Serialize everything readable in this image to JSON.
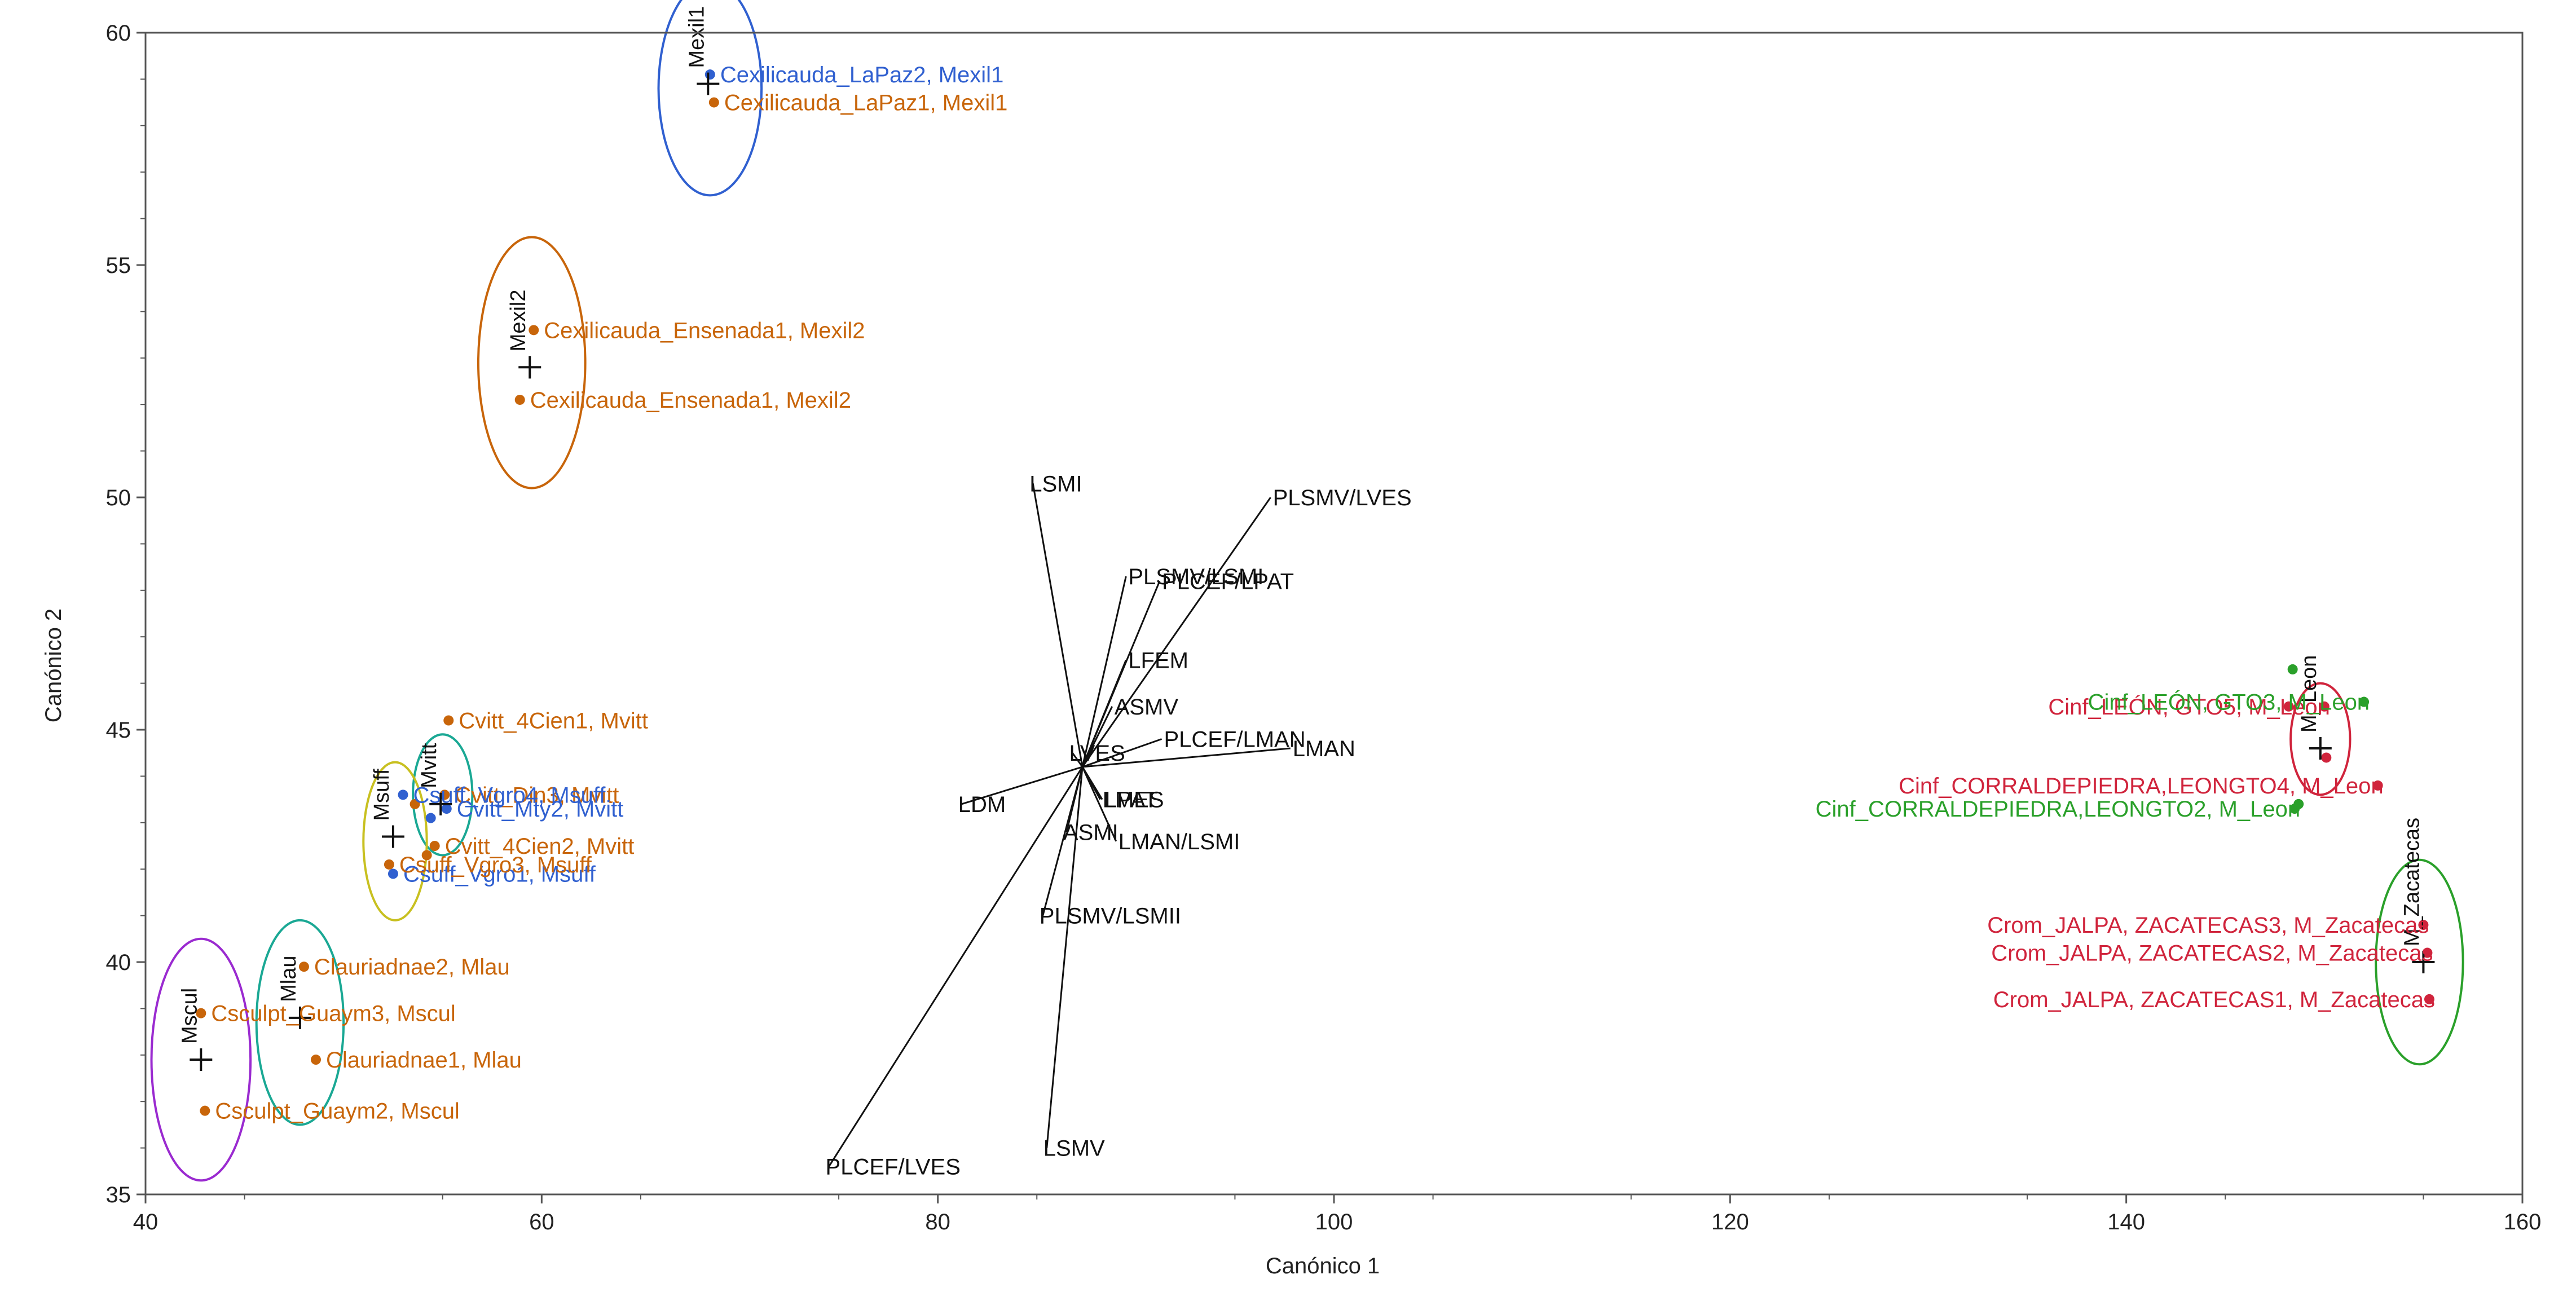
{
  "chart_data": {
    "type": "scatter",
    "title": "",
    "xlabel": "Canónico 1",
    "ylabel": "Canónico 2",
    "xlim": [
      40,
      160
    ],
    "ylim": [
      35,
      60
    ],
    "xticks": [
      40,
      60,
      80,
      100,
      120,
      140,
      160
    ],
    "yticks": [
      35,
      40,
      45,
      50,
      55,
      60
    ],
    "colors": {
      "blue": "#3060d0",
      "orange": "#c8650a",
      "green": "#2aa02a",
      "red": "#d0243c",
      "teal": "#1aa894",
      "yellow": "#c8c020",
      "purple": "#9a2ad0",
      "axis": "#555555",
      "biplot": "#111111"
    },
    "points": [
      {
        "label": "Cexilicauda_LaPaz2, Mexil1",
        "x": 68.5,
        "y": 59.1,
        "color": "blue"
      },
      {
        "label": "Cexilicauda_LaPaz1, Mexil1",
        "x": 68.7,
        "y": 58.5,
        "color": "orange"
      },
      {
        "label": "Cexilicauda_Ensenada1, Mexil2",
        "x": 59.6,
        "y": 53.6,
        "color": "orange"
      },
      {
        "label": "Cexilicauda_Ensenada1, Mexil2",
        "x": 58.9,
        "y": 52.1,
        "color": "orange"
      },
      {
        "label": "Cvitt_4Cien1, Mvitt",
        "x": 55.3,
        "y": 45.2,
        "color": "orange"
      },
      {
        "label": "Cvitt_Din3, Mvitt",
        "x": 55.1,
        "y": 43.6,
        "color": "orange"
      },
      {
        "label": "Csuff_Vgro4, Msuff",
        "x": 53.0,
        "y": 43.6,
        "color": "blue"
      },
      {
        "label": "Cvitt_Mty2, Mvitt",
        "x": 55.2,
        "y": 43.3,
        "color": "blue"
      },
      {
        "label": "Cvitt_4Cien2, Mvitt",
        "x": 54.6,
        "y": 42.5,
        "color": "orange"
      },
      {
        "label": "Csuff_Vgro1, Msuff",
        "x": 52.5,
        "y": 41.9,
        "color": "blue"
      },
      {
        "label": "Csuff_Vgro3, Msuff",
        "x": 52.3,
        "y": 42.1,
        "color": "orange"
      },
      {
        "label": "Clauriadnae2, Mlau",
        "x": 48.0,
        "y": 39.9,
        "color": "orange"
      },
      {
        "label": "Csculpt_Guaym3, Mscul",
        "x": 42.8,
        "y": 38.9,
        "color": "orange"
      },
      {
        "label": "Clauriadnae1, Mlau",
        "x": 48.6,
        "y": 37.9,
        "color": "orange"
      },
      {
        "label": "Csculpt_Guaym2, Mscul",
        "x": 43.0,
        "y": 36.8,
        "color": "orange"
      },
      {
        "label": "Cinf_LEÓN, GTO5, M_Leon",
        "x": 150.0,
        "y": 45.5,
        "color": "red"
      },
      {
        "label": "Cinf_LEÓN, GTO3, M_Leon",
        "x": 152.0,
        "y": 45.6,
        "color": "green"
      },
      {
        "label": "Cinf_CORRALDEPIEDRA,LEONGTO4, M_Leon",
        "x": 152.7,
        "y": 43.8,
        "color": "red"
      },
      {
        "label": "Cinf_CORRALDEPIEDRA,LEONGTO2, M_Leon",
        "x": 148.5,
        "y": 43.3,
        "color": "green"
      },
      {
        "label": "Crom_JALPA, ZACATECAS3, M_Zacatecas",
        "x": 155.0,
        "y": 40.8,
        "color": "red"
      },
      {
        "label": "Crom_JALPA, ZACATECAS2, M_Zacatecas",
        "x": 155.2,
        "y": 40.2,
        "color": "red"
      },
      {
        "label": "Crom_JALPA, ZACATECAS1, M_Zacatecas",
        "x": 155.3,
        "y": 39.2,
        "color": "red"
      }
    ],
    "extra_points": [
      {
        "x": 148.4,
        "y": 46.3,
        "color": "green"
      },
      {
        "x": 148.2,
        "y": 45.5,
        "color": "red"
      },
      {
        "x": 150.1,
        "y": 44.4,
        "color": "red"
      },
      {
        "x": 148.7,
        "y": 43.4,
        "color": "green"
      },
      {
        "x": 54.4,
        "y": 43.1,
        "color": "blue"
      },
      {
        "x": 53.6,
        "y": 43.4,
        "color": "orange"
      },
      {
        "x": 54.2,
        "y": 42.3,
        "color": "orange"
      }
    ],
    "centroids": [
      {
        "label": "Mexil1",
        "x": 68.4,
        "y": 58.9
      },
      {
        "label": "Mexil2",
        "x": 59.4,
        "y": 52.8
      },
      {
        "label": "Mvitt",
        "x": 54.9,
        "y": 43.4
      },
      {
        "label": "Msuff",
        "x": 52.5,
        "y": 42.7
      },
      {
        "label": "Mlau",
        "x": 47.8,
        "y": 38.8
      },
      {
        "label": "Mscul",
        "x": 42.8,
        "y": 37.9
      },
      {
        "label": "M_Leon",
        "x": 149.8,
        "y": 44.6
      },
      {
        "label": "M_Zacatecas",
        "x": 155.0,
        "y": 40.0
      }
    ],
    "ellipses": [
      {
        "group": "Mexil1",
        "cx": 68.5,
        "cy": 58.8,
        "rx": 2.6,
        "ry": 2.3,
        "color": "blue"
      },
      {
        "group": "Mexil2",
        "cx": 59.5,
        "cy": 52.9,
        "rx": 2.7,
        "ry": 2.7,
        "color": "orange"
      },
      {
        "group": "Mvitt",
        "cx": 55.0,
        "cy": 43.6,
        "rx": 1.5,
        "ry": 1.3,
        "color": "teal"
      },
      {
        "group": "Msuff",
        "cx": 52.6,
        "cy": 42.6,
        "rx": 1.6,
        "ry": 1.7,
        "color": "yellow"
      },
      {
        "group": "Mlau",
        "cx": 47.8,
        "cy": 38.7,
        "rx": 2.2,
        "ry": 2.2,
        "color": "teal"
      },
      {
        "group": "Mscul",
        "cx": 42.8,
        "cy": 37.9,
        "rx": 2.5,
        "ry": 2.6,
        "color": "purple"
      },
      {
        "group": "M_Leon",
        "cx": 149.8,
        "cy": 44.8,
        "rx": 1.5,
        "ry": 1.2,
        "color": "red"
      },
      {
        "group": "M_Zacatecas",
        "cx": 154.8,
        "cy": 40.0,
        "rx": 2.2,
        "ry": 2.2,
        "color": "green"
      }
    ],
    "biplot_origin": {
      "x": 87.3,
      "y": 44.2
    },
    "biplot_rays": [
      {
        "label": "LSMI",
        "x": 84.8,
        "y": 50.3
      },
      {
        "label": "PLSMV/LVES",
        "x": 96.8,
        "y": 50.0
      },
      {
        "label": "PLSMV/LSMI",
        "x": 89.5,
        "y": 48.3
      },
      {
        "label": "PLCEF/LPAT",
        "x": 91.2,
        "y": 48.2
      },
      {
        "label": "LFEM",
        "x": 89.5,
        "y": 46.5
      },
      {
        "label": "ASMV",
        "x": 88.8,
        "y": 45.5
      },
      {
        "label": "PLCEF/LMAN",
        "x": 91.3,
        "y": 44.8
      },
      {
        "label": "LMAN",
        "x": 97.8,
        "y": 44.6
      },
      {
        "label": "LVES",
        "x": 86.8,
        "y": 44.5
      },
      {
        "label": "LDM",
        "x": 81.2,
        "y": 43.4
      },
      {
        "label": "LMES",
        "x": 88.2,
        "y": 43.5
      },
      {
        "label": "LPAT",
        "x": 88.3,
        "y": 43.5
      },
      {
        "label": "ASMI",
        "x": 86.5,
        "y": 42.8
      },
      {
        "label": "LMAN/LSMI",
        "x": 89.0,
        "y": 42.6
      },
      {
        "label": "PLSMV/LSMII",
        "x": 85.3,
        "y": 41.0
      },
      {
        "label": "LSMV",
        "x": 85.5,
        "y": 36.0
      },
      {
        "label": "PLCEF/LVES",
        "x": 74.5,
        "y": 35.6
      }
    ]
  }
}
